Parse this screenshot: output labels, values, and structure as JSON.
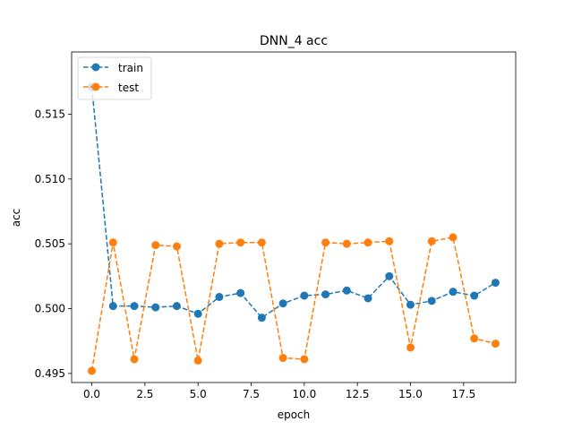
{
  "chart_data": {
    "type": "line",
    "title": "DNN_4 acc",
    "xlabel": "epoch",
    "ylabel": "acc",
    "xlim": [
      -0.95,
      19.95
    ],
    "ylim": [
      0.4943,
      0.5198
    ],
    "x_ticks": [
      0.0,
      2.5,
      5.0,
      7.5,
      10.0,
      12.5,
      15.0,
      17.5
    ],
    "x_tick_labels": [
      "0.0",
      "2.5",
      "5.0",
      "7.5",
      "10.0",
      "12.5",
      "15.0",
      "17.5"
    ],
    "y_ticks": [
      0.495,
      0.5,
      0.505,
      0.51,
      0.515
    ],
    "y_tick_labels": [
      "0.495",
      "0.500",
      "0.505",
      "0.510",
      "0.515"
    ],
    "grid": false,
    "legend_position": "top-left",
    "x": [
      0,
      1,
      2,
      3,
      4,
      5,
      6,
      7,
      8,
      9,
      10,
      11,
      12,
      13,
      14,
      15,
      16,
      17,
      18,
      19
    ],
    "series": [
      {
        "name": "train",
        "color": "#1f77b4",
        "linestyle": "dashed",
        "marker": "circle",
        "values": [
          0.5171,
          0.5002,
          0.5002,
          0.5001,
          0.5002,
          0.4996,
          0.5009,
          0.5012,
          0.4993,
          0.5004,
          0.501,
          0.5011,
          0.5014,
          0.5008,
          0.5025,
          0.5003,
          0.5006,
          0.5013,
          0.501,
          0.502
        ]
      },
      {
        "name": "test",
        "color": "#ff7f0e",
        "linestyle": "dashed",
        "marker": "circle",
        "values": [
          0.4952,
          0.5051,
          0.4961,
          0.5049,
          0.5048,
          0.496,
          0.505,
          0.5051,
          0.5051,
          0.4962,
          0.4961,
          0.5051,
          0.505,
          0.5051,
          0.5052,
          0.497,
          0.5052,
          0.5055,
          0.4977,
          0.4973
        ]
      }
    ]
  }
}
